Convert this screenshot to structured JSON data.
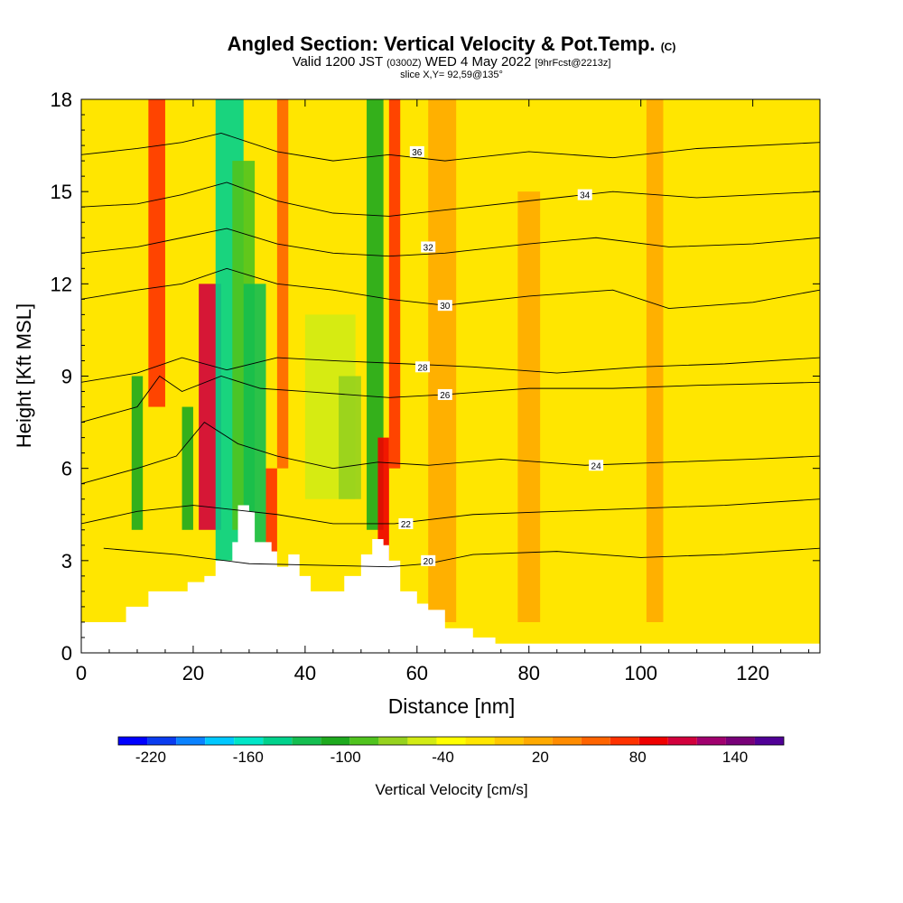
{
  "title": {
    "main": "Angled Section: Vertical Velocity & Pot.Temp.",
    "copyright": "(C)",
    "valid_prefix": "Valid 1200 JST",
    "valid_utc": "(0300Z)",
    "valid_date": "WED 4 May 2022",
    "forecast": "[9hrFcst@2213z]",
    "slice": "slice X,Y= 92,59@135°"
  },
  "chart_data": {
    "type": "heatmap",
    "xlabel": "Distance [nm]",
    "ylabel": "Height [Kft MSL]",
    "xlim": [
      0,
      132
    ],
    "ylim": [
      0,
      18
    ],
    "x_ticks": [
      0,
      20,
      40,
      60,
      80,
      100,
      120
    ],
    "y_ticks": [
      0,
      3,
      6,
      9,
      12,
      15,
      18
    ],
    "colorbar": {
      "label": "Vertical Velocity [cm/s]",
      "tick_labels": [
        -220,
        -160,
        -100,
        -40,
        20,
        80,
        140
      ],
      "min": -240,
      "max": 170,
      "step": 20,
      "colors": [
        "#0000ff",
        "#0a3cf0",
        "#0a82ff",
        "#00c8ff",
        "#00e6c8",
        "#00d28c",
        "#14be50",
        "#1eaa1e",
        "#50c31e",
        "#96d21e",
        "#d2eb14",
        "#ffff00",
        "#ffe600",
        "#ffc800",
        "#ffaa00",
        "#ff8c00",
        "#ff6400",
        "#ff3200",
        "#f00000",
        "#d2003c",
        "#a0006e",
        "#780078",
        "#500096"
      ]
    },
    "background_velocity": 10,
    "velocity_bands": [
      {
        "x0": 9,
        "x1": 11,
        "y0": 4,
        "y1": 9,
        "value": -90
      },
      {
        "x0": 12,
        "x1": 15,
        "y0": 8,
        "y1": 18,
        "value": 110
      },
      {
        "x0": 18,
        "x1": 20,
        "y0": 4,
        "y1": 8,
        "value": -90
      },
      {
        "x0": 21,
        "x1": 25,
        "y0": 4,
        "y1": 12,
        "value": 140
      },
      {
        "x0": 24,
        "x1": 29,
        "y0": 3,
        "y1": 18,
        "value": -130
      },
      {
        "x0": 27,
        "x1": 31,
        "y0": 4,
        "y1": 16,
        "value": -80
      },
      {
        "x0": 29,
        "x1": 33,
        "y0": 3,
        "y1": 12,
        "value": -110
      },
      {
        "x0": 33,
        "x1": 35,
        "y0": 3,
        "y1": 6,
        "value": 100
      },
      {
        "x0": 35,
        "x1": 37,
        "y0": 6,
        "y1": 18,
        "value": 80
      },
      {
        "x0": 40,
        "x1": 49,
        "y0": 5,
        "y1": 11,
        "value": -40
      },
      {
        "x0": 46,
        "x1": 50,
        "y0": 5,
        "y1": 9,
        "value": -60
      },
      {
        "x0": 51,
        "x1": 54,
        "y0": 4,
        "y1": 18,
        "value": -90
      },
      {
        "x0": 53,
        "x1": 55,
        "y0": 3,
        "y1": 7,
        "value": 120
      },
      {
        "x0": 55,
        "x1": 57,
        "y0": 6,
        "y1": 18,
        "value": 100
      },
      {
        "x0": 62,
        "x1": 67,
        "y0": 1,
        "y1": 18,
        "value": 40
      },
      {
        "x0": 78,
        "x1": 82,
        "y0": 1,
        "y1": 15,
        "value": 40
      },
      {
        "x0": 101,
        "x1": 104,
        "y0": 1,
        "y1": 18,
        "value": 40
      }
    ],
    "terrain": [
      [
        0,
        1.0
      ],
      [
        5,
        1.0
      ],
      [
        8,
        1.5
      ],
      [
        12,
        2.0
      ],
      [
        16,
        2.0
      ],
      [
        19,
        2.3
      ],
      [
        22,
        2.5
      ],
      [
        24,
        3.0
      ],
      [
        27,
        3.6
      ],
      [
        28,
        4.8
      ],
      [
        30,
        4.6
      ],
      [
        31,
        3.6
      ],
      [
        34,
        3.3
      ],
      [
        35,
        2.8
      ],
      [
        37,
        3.2
      ],
      [
        39,
        2.5
      ],
      [
        41,
        2.0
      ],
      [
        44,
        2.0
      ],
      [
        47,
        2.5
      ],
      [
        50,
        3.2
      ],
      [
        52,
        3.7
      ],
      [
        54,
        3.5
      ],
      [
        55,
        3.0
      ],
      [
        57,
        2.0
      ],
      [
        60,
        1.6
      ],
      [
        62,
        1.4
      ],
      [
        65,
        0.8
      ],
      [
        70,
        0.5
      ],
      [
        74,
        0.3
      ],
      [
        132,
        0.3
      ]
    ],
    "contours": [
      {
        "label": "20",
        "points": [
          [
            4,
            3.4
          ],
          [
            17,
            3.2
          ],
          [
            30,
            2.9
          ],
          [
            55,
            2.8
          ],
          [
            62,
            2.9
          ],
          [
            70,
            3.2
          ],
          [
            85,
            3.3
          ],
          [
            100,
            3.1
          ],
          [
            115,
            3.2
          ],
          [
            132,
            3.4
          ]
        ],
        "label_at": [
          62,
          3.0
        ]
      },
      {
        "label": "22",
        "points": [
          [
            0,
            4.2
          ],
          [
            10,
            4.6
          ],
          [
            20,
            4.8
          ],
          [
            35,
            4.5
          ],
          [
            45,
            4.2
          ],
          [
            56,
            4.2
          ],
          [
            70,
            4.5
          ],
          [
            85,
            4.6
          ],
          [
            100,
            4.7
          ],
          [
            115,
            4.8
          ],
          [
            132,
            5.0
          ]
        ],
        "label_at": [
          58,
          4.2
        ]
      },
      {
        "label": "24",
        "points": [
          [
            0,
            5.5
          ],
          [
            10,
            6.0
          ],
          [
            17,
            6.4
          ],
          [
            22,
            7.5
          ],
          [
            28,
            6.8
          ],
          [
            35,
            6.4
          ],
          [
            45,
            6.0
          ],
          [
            53,
            6.2
          ],
          [
            62,
            6.1
          ],
          [
            75,
            6.3
          ],
          [
            90,
            6.1
          ],
          [
            105,
            6.2
          ],
          [
            120,
            6.3
          ],
          [
            132,
            6.4
          ]
        ],
        "label_at": [
          92,
          6.1
        ]
      },
      {
        "label": "26",
        "points": [
          [
            0,
            7.5
          ],
          [
            10,
            8.0
          ],
          [
            14,
            9.0
          ],
          [
            18,
            8.5
          ],
          [
            25,
            9.0
          ],
          [
            32,
            8.6
          ],
          [
            40,
            8.5
          ],
          [
            55,
            8.3
          ],
          [
            65,
            8.4
          ],
          [
            80,
            8.6
          ],
          [
            95,
            8.6
          ],
          [
            110,
            8.7
          ],
          [
            132,
            8.8
          ]
        ],
        "label_at": [
          65,
          8.4
        ]
      },
      {
        "label": "28",
        "points": [
          [
            0,
            8.8
          ],
          [
            10,
            9.1
          ],
          [
            18,
            9.6
          ],
          [
            26,
            9.2
          ],
          [
            35,
            9.6
          ],
          [
            45,
            9.5
          ],
          [
            58,
            9.4
          ],
          [
            70,
            9.3
          ],
          [
            85,
            9.1
          ],
          [
            100,
            9.3
          ],
          [
            115,
            9.4
          ],
          [
            132,
            9.6
          ]
        ],
        "label_at": [
          61,
          9.3
        ]
      },
      {
        "label": "30",
        "points": [
          [
            0,
            11.5
          ],
          [
            10,
            11.8
          ],
          [
            18,
            12.0
          ],
          [
            26,
            12.5
          ],
          [
            35,
            12.0
          ],
          [
            45,
            11.8
          ],
          [
            55,
            11.5
          ],
          [
            65,
            11.3
          ],
          [
            80,
            11.6
          ],
          [
            95,
            11.8
          ],
          [
            105,
            11.2
          ],
          [
            120,
            11.4
          ],
          [
            132,
            11.8
          ]
        ],
        "label_at": [
          65,
          11.3
        ]
      },
      {
        "label": "32",
        "points": [
          [
            0,
            13.0
          ],
          [
            10,
            13.2
          ],
          [
            18,
            13.5
          ],
          [
            26,
            13.8
          ],
          [
            35,
            13.3
          ],
          [
            45,
            13.0
          ],
          [
            55,
            12.9
          ],
          [
            65,
            13.0
          ],
          [
            80,
            13.3
          ],
          [
            92,
            13.5
          ],
          [
            105,
            13.2
          ],
          [
            120,
            13.3
          ],
          [
            132,
            13.5
          ]
        ],
        "label_at": [
          62,
          13.2
        ]
      },
      {
        "label": "34",
        "points": [
          [
            0,
            14.5
          ],
          [
            10,
            14.6
          ],
          [
            18,
            14.9
          ],
          [
            26,
            15.3
          ],
          [
            35,
            14.7
          ],
          [
            45,
            14.3
          ],
          [
            55,
            14.2
          ],
          [
            65,
            14.4
          ],
          [
            80,
            14.7
          ],
          [
            95,
            15.0
          ],
          [
            110,
            14.8
          ],
          [
            132,
            15.0
          ]
        ],
        "label_at": [
          90,
          14.9
        ]
      },
      {
        "label": "36",
        "points": [
          [
            0,
            16.2
          ],
          [
            10,
            16.4
          ],
          [
            18,
            16.6
          ],
          [
            25,
            16.9
          ],
          [
            35,
            16.3
          ],
          [
            45,
            16.0
          ],
          [
            55,
            16.2
          ],
          [
            65,
            16.0
          ],
          [
            80,
            16.3
          ],
          [
            95,
            16.1
          ],
          [
            110,
            16.4
          ],
          [
            132,
            16.6
          ]
        ],
        "label_at": [
          60,
          16.3
        ]
      }
    ]
  }
}
